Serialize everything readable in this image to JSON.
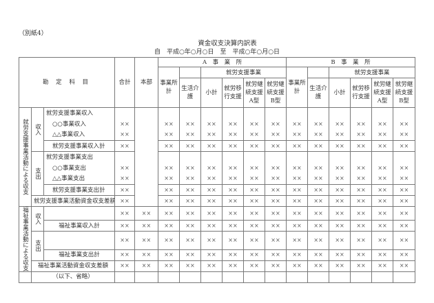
{
  "annex": "（別紙4）",
  "title": "資金収支決算内訳表",
  "period": "自　平成○年○月○日　至　平成○年○月○日",
  "header": {
    "account": "勘 定 科 目",
    "total": "合計",
    "hq": "本部",
    "office_a": "A　事　業　所",
    "office_b": "B　事　業　所",
    "office_total": "事業所計",
    "daily_care": "生活介護",
    "employment_support": "就労支援事業",
    "subtotal": "小計",
    "transition": "就労移行支援",
    "type_a": "就労継続支援A型",
    "type_b": "就労継続支援B型"
  },
  "sections": {
    "employment": "就労支援事業活動による収支",
    "welfare": "福祉事業活動による収支"
  },
  "labels": {
    "income": "収入",
    "expense": "支出",
    "emp_income": "就労支援事業収入",
    "oo_income": "○○事業収入",
    "tt_income": "△△事業収入",
    "emp_income_total": "就労支援事業収入計",
    "emp_expense": "就労支援事業支出",
    "oo_expense": "○○事業支出",
    "tt_expense": "△△事業支出",
    "emp_expense_total": "就労支援事業支出計",
    "emp_balance": "就労支援事業活動資金収支差額",
    "wel_income_total": "福祉事業収入計",
    "wel_expense_total": "福祉事業支出計",
    "wel_balance": "福祉事業活動資金収支差額",
    "omitted": "（以下、省略）"
  },
  "rows": [
    {
      "values": [
        null,
        null,
        null,
        null,
        null,
        null,
        null,
        null,
        null,
        null,
        null,
        null,
        null,
        null
      ]
    },
    {
      "values": [
        "××",
        null,
        "××",
        "××",
        "××",
        "××",
        "××",
        "××",
        "××",
        "××",
        "××",
        "××",
        "××",
        "××"
      ]
    },
    {
      "values": [
        "××",
        null,
        "××",
        "××",
        "××",
        "××",
        "××",
        "××",
        "××",
        "××",
        "××",
        "××",
        "××",
        "××"
      ]
    },
    {
      "values": [
        "××",
        null,
        "××",
        "××",
        "××",
        "××",
        "××",
        "××",
        "××",
        "××",
        "××",
        "××",
        "××",
        "××"
      ]
    },
    {
      "values": [
        null,
        null,
        null,
        null,
        null,
        null,
        null,
        null,
        null,
        null,
        null,
        null,
        null,
        null
      ]
    },
    {
      "values": [
        "××",
        null,
        "××",
        "××",
        "××",
        "××",
        "××",
        "××",
        "××",
        "××",
        "××",
        "××",
        "××",
        "××"
      ]
    },
    {
      "values": [
        "××",
        null,
        "××",
        "××",
        "××",
        "××",
        "××",
        "××",
        "××",
        "××",
        "××",
        "××",
        "××",
        "××"
      ]
    },
    {
      "values": [
        "××",
        null,
        "××",
        "××",
        "××",
        "××",
        "××",
        "××",
        "××",
        "××",
        "××",
        "××",
        "××",
        "××"
      ]
    },
    {
      "values": [
        "××",
        null,
        "××",
        "××",
        "××",
        "××",
        "××",
        "××",
        "××",
        "××",
        "××",
        "××",
        "××",
        "××"
      ]
    },
    {
      "values": [
        "××",
        "××",
        "××",
        "××",
        "××",
        "××",
        "××",
        "××",
        "××",
        "××",
        "××",
        "××",
        "××",
        "××"
      ]
    },
    {
      "values": [
        "××",
        "××",
        "××",
        "××",
        "××",
        "××",
        "××",
        "××",
        "××",
        "××",
        "××",
        "××",
        "××",
        "××"
      ]
    },
    {
      "values": [
        "××",
        "××",
        "××",
        "××",
        "××",
        "××",
        "××",
        "××",
        "××",
        "××",
        "××",
        "××",
        "××",
        "××"
      ]
    },
    {
      "values": [
        "××",
        "××",
        "××",
        "××",
        "××",
        "××",
        "××",
        "××",
        "××",
        "××",
        "××",
        "××",
        "××",
        "××"
      ]
    },
    {
      "values": [
        "××",
        "××",
        "××",
        "××",
        "××",
        "××",
        "××",
        "××",
        "××",
        "××",
        "××",
        "××",
        "××",
        "××"
      ]
    },
    {
      "values": [
        null,
        null,
        null,
        null,
        null,
        null,
        null,
        null,
        null,
        null,
        null,
        null,
        null,
        null
      ]
    }
  ]
}
